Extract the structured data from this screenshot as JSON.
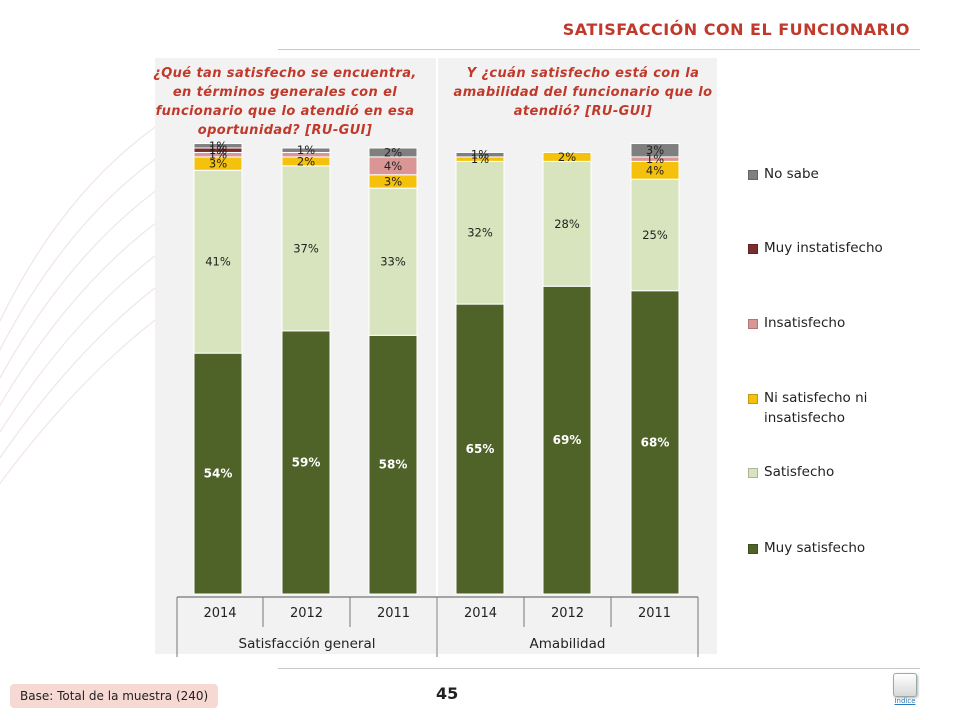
{
  "header": {
    "title": "SATISFACCIÓN CON EL FUNCIONARIO"
  },
  "questions": {
    "q1": "¿Qué tan satisfecho se encuentra, en términos generales con el funcionario que lo atendió en esa oportunidad? [RU-GUI]",
    "q2": "Y ¿cuán satisfecho está con la amabilidad del funcionario que lo atendió? [RU-GUI]"
  },
  "footer": {
    "base": "Base: Total de la muestra (240)",
    "page": "45",
    "index_label": "Indice"
  },
  "chart_data": {
    "type": "bar",
    "stacked": true,
    "groups": [
      {
        "name": "Satisfacción general",
        "categories": [
          "2014",
          "2012",
          "2011"
        ]
      },
      {
        "name": "Amabilidad",
        "categories": [
          "2014",
          "2012",
          "2011"
        ]
      }
    ],
    "categories": [
      "2014",
      "2012",
      "2011",
      "2014",
      "2012",
      "2011"
    ],
    "series": [
      {
        "name": "Muy satisfecho",
        "color": "#4f6228",
        "values": [
          54,
          59,
          58,
          65,
          69,
          68
        ],
        "labels": [
          "54%",
          "59%",
          "58%",
          "65%",
          "69%",
          "68%"
        ]
      },
      {
        "name": "Satisfecho",
        "color": "#d7e4bd",
        "values": [
          41,
          37,
          33,
          32,
          28,
          25
        ],
        "labels": [
          "41%",
          "37%",
          "33%",
          "32%",
          "28%",
          "25%"
        ]
      },
      {
        "name": "Ni satisfecho ni insatisfecho",
        "color": "#f4c20d",
        "values": [
          3,
          2,
          3,
          1,
          2,
          4
        ],
        "labels": [
          "3%",
          "2%",
          "3%",
          "1%",
          "2%",
          "4%"
        ]
      },
      {
        "name": "Insatisfecho",
        "color": "#d99694",
        "values": [
          1,
          1,
          4,
          0,
          0,
          1
        ],
        "labels": [
          "1%",
          "",
          "4%",
          "",
          "",
          "1%"
        ]
      },
      {
        "name": "Muy instatisfecho",
        "color": "#7b2c2c",
        "values": [
          1,
          0,
          0,
          0,
          0,
          0
        ],
        "labels": [
          "1%",
          "",
          "",
          "",
          "",
          ""
        ]
      },
      {
        "name": "No sabe",
        "color": "#7f7f7f",
        "values": [
          1,
          1,
          2,
          1,
          0,
          3
        ],
        "labels": [
          "1%",
          "1%",
          "2%",
          "1%",
          "",
          "3%"
        ]
      }
    ],
    "ylim": [
      0,
      100
    ],
    "legend": "right"
  }
}
